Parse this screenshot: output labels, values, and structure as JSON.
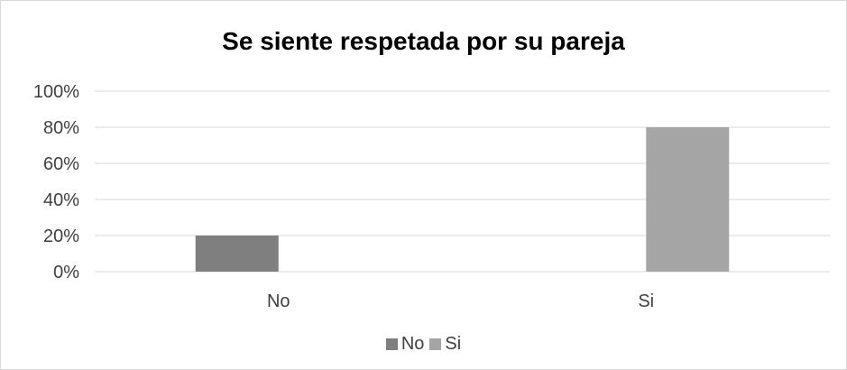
{
  "chart_data": {
    "type": "bar",
    "title": "Se siente respetada por su pareja",
    "categories": [
      "No",
      "Si"
    ],
    "series": [
      {
        "name": "No",
        "values": [
          20,
          null
        ],
        "color": "#7f7f7f"
      },
      {
        "name": "Si",
        "values": [
          null,
          80
        ],
        "color": "#a5a5a5"
      }
    ],
    "y_ticks": [
      "0%",
      "20%",
      "40%",
      "60%",
      "80%",
      "100%"
    ],
    "ylim": [
      0,
      100
    ],
    "grid": true,
    "legend_position": "bottom"
  }
}
